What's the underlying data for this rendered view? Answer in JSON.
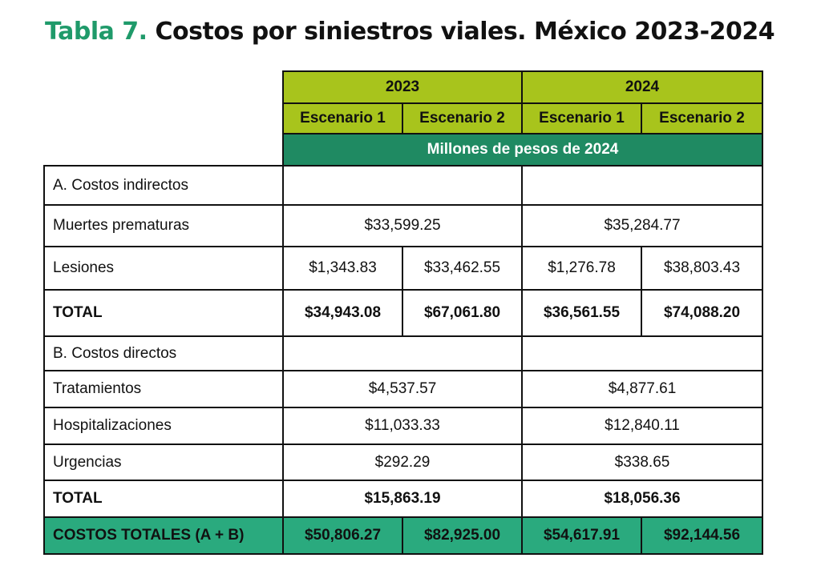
{
  "title": {
    "lead": "Tabla 7.",
    "rest": "Costos por siniestros viales. México 2023-2024"
  },
  "years": [
    "2023",
    "2024"
  ],
  "scenarios": [
    "Escenario 1",
    "Escenario 2",
    "Escenario 1",
    "Escenario 2"
  ],
  "units": "Millones de pesos de 2024",
  "sections": {
    "indirect": "A. Costos indirectos",
    "direct": "B. Costos directos"
  },
  "rows": {
    "muertes": {
      "label": "Muertes prematuras",
      "y2023": "$33,599.25",
      "y2024": "$35,284.77"
    },
    "lesiones": {
      "label": "Lesiones",
      "values": [
        "$1,343.83",
        "$33,462.55",
        "$1,276.78",
        "$38,803.43"
      ]
    },
    "total_a": {
      "label": "TOTAL",
      "values": [
        "$34,943.08",
        "$67,061.80",
        "$36,561.55",
        "$74,088.20"
      ]
    },
    "tratamientos": {
      "label": "Tratamientos",
      "y2023": "$4,537.57",
      "y2024": "$4,877.61"
    },
    "hospitalizaciones": {
      "label": "Hospitalizaciones",
      "y2023": "$11,033.33",
      "y2024": "$12,840.11"
    },
    "urgencias": {
      "label": "Urgencias",
      "y2023": "$292.29",
      "y2024": "$338.65"
    },
    "total_b": {
      "label": "TOTAL",
      "y2023": "$15,863.19",
      "y2024": "$18,056.36"
    },
    "grand_total": {
      "label": "COSTOS TOTALES (A + B)",
      "values": [
        "$50,806.27",
        "$82,925.00",
        "$54,617.91",
        "$92,144.56"
      ]
    }
  },
  "colors": {
    "lime": "#a8c41c",
    "green": "#1f8a62",
    "green_light": "#2aaa7e",
    "title_green": "#1f9a6a"
  }
}
